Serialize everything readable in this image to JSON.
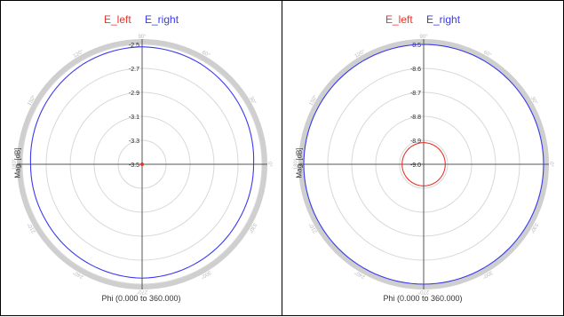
{
  "colors": {
    "E_left": "#e8332b",
    "E_right": "#3a3af0"
  },
  "chart_data": [
    {
      "type": "polar",
      "legend": [
        "E_left",
        "E_right"
      ],
      "legend_placement": "top-center",
      "xlabel": "Phi (0.000 to 360.000)",
      "ylabel": "Mag. [dB]",
      "rlim": [
        -3.5,
        -2.5
      ],
      "radial_ticks": [
        "-2.5",
        "-2.7",
        "-2.9",
        "-3.1",
        "-3.3",
        "-3.5"
      ],
      "angle_ticks": [
        "0°",
        "30°",
        "60°",
        "90°",
        "120°",
        "150°",
        "180°",
        "210°",
        "240°",
        "270°",
        "300°",
        "330°"
      ],
      "grid": true,
      "series": [
        {
          "name": "E_left",
          "phi": [
            0,
            90,
            180,
            270
          ],
          "values": [
            -3.5,
            -3.5,
            -3.5,
            -3.5
          ]
        },
        {
          "name": "E_right",
          "phi": [
            0,
            30,
            60,
            90,
            120,
            150,
            180,
            210,
            240,
            270,
            300,
            330
          ],
          "values": [
            -2.57,
            -2.55,
            -2.53,
            -2.52,
            -2.53,
            -2.55,
            -2.57,
            -2.57,
            -2.56,
            -2.55,
            -2.56,
            -2.57
          ]
        }
      ]
    },
    {
      "type": "polar",
      "legend": [
        "E_left",
        "E_right"
      ],
      "legend_placement": "top-center",
      "xlabel": "Phi (0.000 to 360.000)",
      "ylabel": "Mag. [dB]",
      "rlim": [
        -9.0,
        -8.5
      ],
      "radial_ticks": [
        "-8.5",
        "-8.6",
        "-8.7",
        "-8.8",
        "-8.9",
        "-9.0"
      ],
      "angle_ticks": [
        "0°",
        "30°",
        "60°",
        "90°",
        "120°",
        "150°",
        "180°",
        "210°",
        "240°",
        "270°",
        "300°",
        "330°"
      ],
      "grid": true,
      "series": [
        {
          "name": "E_left",
          "phi": [
            0,
            90,
            180,
            270
          ],
          "values": [
            -8.91,
            -8.91,
            -8.91,
            -8.91
          ]
        },
        {
          "name": "E_right",
          "phi": [
            0,
            90,
            180,
            270
          ],
          "values": [
            -8.5,
            -8.5,
            -8.5,
            -8.5
          ]
        }
      ]
    }
  ]
}
